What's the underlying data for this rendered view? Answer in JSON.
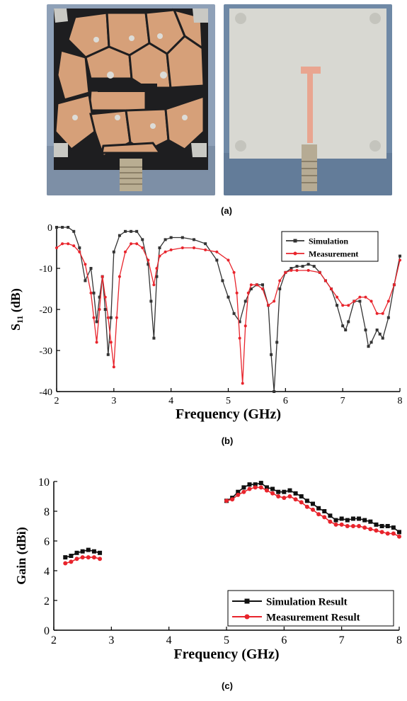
{
  "figure": {
    "captions": {
      "a": "(a)",
      "b": "(b)",
      "c": "(c)"
    },
    "photos": [
      {
        "name": "antenna-front-photo",
        "colors": {
          "background": "#8ea0b6",
          "substrate": "#1c1c1e",
          "patch": "#d9a17a",
          "connector": "#b8ad93"
        }
      },
      {
        "name": "antenna-back-photo",
        "colors": {
          "background": "#6f8aa7",
          "substrate": "#d8d8d2",
          "feed": "#e9a590",
          "connector": "#b6ab94"
        }
      }
    ]
  },
  "chart_data": [
    {
      "id": "b",
      "type": "line",
      "xlabel": "Frequency (GHz)",
      "ylabel": "S11 (dB)",
      "ylabel_main": "S",
      "ylabel_sub": "11",
      "ylabel_unit": "(dB)",
      "xlim": [
        2,
        8
      ],
      "ylim": [
        -40,
        0
      ],
      "xticks": [
        2,
        3,
        4,
        5,
        6,
        7,
        8
      ],
      "yticks": [
        0,
        -10,
        -20,
        -30,
        -40
      ],
      "grid": false,
      "legend_position": "top-right",
      "series": [
        {
          "name": "Simulation",
          "color": "#333333",
          "marker": "square",
          "x": [
            2.0,
            2.1,
            2.2,
            2.3,
            2.4,
            2.5,
            2.6,
            2.65,
            2.7,
            2.75,
            2.8,
            2.85,
            2.9,
            2.95,
            3.0,
            3.1,
            3.2,
            3.3,
            3.4,
            3.5,
            3.6,
            3.65,
            3.7,
            3.75,
            3.8,
            3.9,
            4.0,
            4.2,
            4.4,
            4.6,
            4.8,
            4.9,
            5.0,
            5.1,
            5.2,
            5.3,
            5.4,
            5.5,
            5.6,
            5.7,
            5.75,
            5.8,
            5.85,
            5.9,
            6.0,
            6.1,
            6.2,
            6.3,
            6.4,
            6.5,
            6.6,
            6.7,
            6.8,
            6.9,
            7.0,
            7.05,
            7.1,
            7.2,
            7.3,
            7.4,
            7.45,
            7.5,
            7.6,
            7.65,
            7.7,
            7.8,
            7.9,
            8.0
          ],
          "y": [
            0,
            0,
            0,
            -1,
            -5,
            -13,
            -10,
            -16,
            -23,
            -17,
            -12,
            -20,
            -31,
            -22,
            -6,
            -2,
            -1,
            -1,
            -1,
            -3,
            -9,
            -18,
            -27,
            -12,
            -5,
            -3,
            -2.5,
            -2.5,
            -3,
            -4,
            -8,
            -13,
            -17,
            -21,
            -23,
            -18,
            -15,
            -14,
            -14,
            -19,
            -31,
            -40,
            -28,
            -15,
            -11,
            -10,
            -9.5,
            -9.5,
            -9,
            -9.5,
            -11,
            -13,
            -15,
            -19,
            -24,
            -25,
            -23,
            -18,
            -18,
            -25,
            -29,
            -28,
            -25,
            -26,
            -27,
            -22,
            -14,
            -7
          ]
        },
        {
          "name": "Measurement",
          "color": "#e8242c",
          "marker": "circle",
          "x": [
            2.0,
            2.1,
            2.2,
            2.3,
            2.4,
            2.5,
            2.6,
            2.65,
            2.7,
            2.75,
            2.8,
            2.85,
            2.9,
            2.95,
            3.0,
            3.05,
            3.1,
            3.2,
            3.3,
            3.4,
            3.5,
            3.6,
            3.7,
            3.75,
            3.8,
            3.9,
            4.0,
            4.2,
            4.4,
            4.6,
            4.8,
            5.0,
            5.1,
            5.15,
            5.2,
            5.25,
            5.3,
            5.35,
            5.4,
            5.5,
            5.6,
            5.7,
            5.8,
            5.9,
            6.0,
            6.1,
            6.2,
            6.4,
            6.6,
            6.7,
            6.8,
            6.9,
            7.0,
            7.1,
            7.2,
            7.3,
            7.4,
            7.5,
            7.6,
            7.7,
            7.8,
            7.9,
            8.0
          ],
          "y": [
            -5,
            -4,
            -4,
            -4.5,
            -6,
            -9,
            -16,
            -22,
            -28,
            -20,
            -12,
            -17,
            -22,
            -28,
            -34,
            -22,
            -12,
            -6,
            -4,
            -4,
            -5,
            -8,
            -14,
            -10,
            -7,
            -6,
            -5.5,
            -5,
            -5,
            -5.5,
            -6,
            -8,
            -11,
            -16,
            -27,
            -38,
            -24,
            -16,
            -14,
            -14,
            -15,
            -19,
            -18,
            -13,
            -11,
            -10.5,
            -10.5,
            -10.5,
            -11,
            -13,
            -15,
            -17,
            -19,
            -19,
            -18,
            -17,
            -17,
            -18,
            -21,
            -21,
            -18,
            -14,
            -8
          ]
        }
      ]
    },
    {
      "id": "c",
      "type": "line",
      "xlabel": "Frequency (GHz)",
      "ylabel": "Gain (dBi)",
      "xlim": [
        2,
        8
      ],
      "ylim": [
        0,
        10
      ],
      "xticks": [
        2,
        3,
        4,
        5,
        6,
        7,
        8
      ],
      "yticks": [
        0,
        2,
        4,
        6,
        8,
        10
      ],
      "grid": false,
      "legend_position": "bottom-right",
      "series": [
        {
          "name": "Simulation Result",
          "color": "#111111",
          "marker": "square",
          "segments": [
            {
              "x": [
                2.2,
                2.3,
                2.4,
                2.5,
                2.6,
                2.7,
                2.8
              ],
              "y": [
                4.9,
                5.0,
                5.2,
                5.3,
                5.4,
                5.3,
                5.2
              ]
            },
            {
              "x": [
                5.0,
                5.1,
                5.2,
                5.3,
                5.4,
                5.5,
                5.6,
                5.7,
                5.8,
                5.9,
                6.0,
                6.1,
                6.2,
                6.3,
                6.4,
                6.5,
                6.6,
                6.7,
                6.8,
                6.9,
                7.0,
                7.1,
                7.2,
                7.3,
                7.4,
                7.5,
                7.6,
                7.7,
                7.8,
                7.9,
                8.0
              ],
              "y": [
                8.7,
                8.9,
                9.3,
                9.6,
                9.8,
                9.8,
                9.9,
                9.6,
                9.5,
                9.3,
                9.3,
                9.4,
                9.2,
                9.0,
                8.7,
                8.5,
                8.2,
                8.0,
                7.7,
                7.4,
                7.5,
                7.4,
                7.5,
                7.5,
                7.4,
                7.3,
                7.1,
                7.0,
                7.0,
                6.9,
                6.6
              ]
            }
          ]
        },
        {
          "name": "Measurement Result",
          "color": "#e8242c",
          "marker": "circle",
          "segments": [
            {
              "x": [
                2.2,
                2.3,
                2.4,
                2.5,
                2.6,
                2.7,
                2.8
              ],
              "y": [
                4.5,
                4.6,
                4.8,
                4.9,
                4.9,
                4.9,
                4.8
              ]
            },
            {
              "x": [
                5.0,
                5.1,
                5.2,
                5.3,
                5.4,
                5.5,
                5.6,
                5.7,
                5.8,
                5.9,
                6.0,
                6.1,
                6.2,
                6.3,
                6.4,
                6.5,
                6.6,
                6.7,
                6.8,
                6.9,
                7.0,
                7.1,
                7.2,
                7.3,
                7.4,
                7.5,
                7.6,
                7.7,
                7.8,
                7.9,
                8.0
              ],
              "y": [
                8.7,
                8.8,
                9.1,
                9.3,
                9.5,
                9.6,
                9.6,
                9.4,
                9.2,
                9.0,
                8.9,
                9.0,
                8.8,
                8.6,
                8.3,
                8.1,
                7.8,
                7.6,
                7.3,
                7.1,
                7.1,
                7.0,
                7.0,
                7.0,
                6.9,
                6.8,
                6.7,
                6.6,
                6.5,
                6.5,
                6.3
              ]
            }
          ]
        }
      ]
    }
  ]
}
